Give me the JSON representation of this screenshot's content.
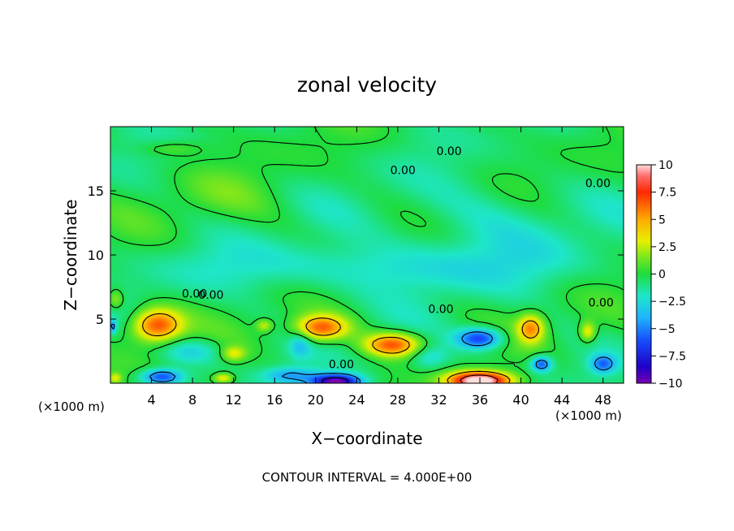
{
  "chart_data": {
    "type": "heatmap",
    "title": "zonal velocity",
    "xlabel": "X−coordinate",
    "ylabel": "Z−coordinate",
    "x_unit_left": "(×1000 m)",
    "x_unit_right": "(×1000 m)",
    "footer": "CONTOUR INTERVAL = 4.000E+00",
    "xlim": [
      0,
      50
    ],
    "ylim": [
      0,
      20
    ],
    "x_ticks": [
      {
        "v": 4,
        "label": "4"
      },
      {
        "v": 8,
        "label": "8"
      },
      {
        "v": 12,
        "label": "12"
      },
      {
        "v": 16,
        "label": "16"
      },
      {
        "v": 20,
        "label": "20"
      },
      {
        "v": 24,
        "label": "24"
      },
      {
        "v": 28,
        "label": "28"
      },
      {
        "v": 32,
        "label": "32"
      },
      {
        "v": 36,
        "label": "36"
      },
      {
        "v": 40,
        "label": "40"
      },
      {
        "v": 44,
        "label": "44"
      },
      {
        "v": 48,
        "label": "48"
      }
    ],
    "y_ticks": [
      {
        "v": 5,
        "label": "5"
      },
      {
        "v": 10,
        "label": "10"
      },
      {
        "v": 15,
        "label": "15"
      }
    ],
    "colorbar": {
      "min": -10,
      "max": 10,
      "ticks": [
        {
          "v": 10,
          "label": "10"
        },
        {
          "v": 7.5,
          "label": "7.5"
        },
        {
          "v": 5,
          "label": "5"
        },
        {
          "v": 2.5,
          "label": "2.5"
        },
        {
          "v": 0,
          "label": "0"
        },
        {
          "v": -2.5,
          "label": "−2.5"
        },
        {
          "v": -5,
          "label": "−5"
        },
        {
          "v": -7.5,
          "label": "−7.5"
        },
        {
          "v": -10,
          "label": "−10"
        }
      ],
      "stops": [
        {
          "v": -10,
          "color": "#7a00b4"
        },
        {
          "v": -8.5,
          "color": "#1e00c8"
        },
        {
          "v": -6,
          "color": "#1650ff"
        },
        {
          "v": -4,
          "color": "#1eb4ff"
        },
        {
          "v": -2,
          "color": "#1ee6c8"
        },
        {
          "v": 0,
          "color": "#1edc3c"
        },
        {
          "v": 1.5,
          "color": "#78e61e"
        },
        {
          "v": 3,
          "color": "#e6f000"
        },
        {
          "v": 5,
          "color": "#ffaa00"
        },
        {
          "v": 7.5,
          "color": "#ff2800"
        },
        {
          "v": 9,
          "color": "#ff6e6e"
        },
        {
          "v": 10,
          "color": "#ffdcdc"
        }
      ]
    },
    "contour_labels": [
      {
        "x": 33,
        "y": 18.1,
        "label": "0.00"
      },
      {
        "x": 28.5,
        "y": 16.6,
        "label": "0.00"
      },
      {
        "x": 47.5,
        "y": 15.6,
        "label": "0.00"
      },
      {
        "x": 8.2,
        "y": 7.0,
        "label": "0.00"
      },
      {
        "x": 9.8,
        "y": 6.9,
        "label": "0.00"
      },
      {
        "x": 32.2,
        "y": 5.8,
        "label": "0.00"
      },
      {
        "x": 47.8,
        "y": 6.3,
        "label": "0.00"
      },
      {
        "x": 22.5,
        "y": 1.5,
        "label": "0.00"
      }
    ],
    "features": [
      {
        "x": 4.5,
        "y": 4.5,
        "sx": 2.4,
        "sy": 1.3,
        "amp": 7.5
      },
      {
        "x": 20.5,
        "y": 4.3,
        "sx": 2.6,
        "sy": 1.0,
        "amp": 7.0
      },
      {
        "x": 27.5,
        "y": 3.0,
        "sx": 2.8,
        "sy": 0.9,
        "amp": 6.8
      },
      {
        "x": 41,
        "y": 4.3,
        "sx": 1.3,
        "sy": 1.1,
        "amp": 5.5
      },
      {
        "x": 36,
        "y": 0.2,
        "sx": 3.0,
        "sy": 0.7,
        "amp": 12
      },
      {
        "x": 22,
        "y": 0.1,
        "sx": 2.4,
        "sy": 0.6,
        "amp": -10
      },
      {
        "x": 5,
        "y": 0.5,
        "sx": 2.0,
        "sy": 0.6,
        "amp": -6
      },
      {
        "x": 36,
        "y": 3.5,
        "sx": 2.2,
        "sy": 0.8,
        "amp": -6.5
      },
      {
        "x": 42,
        "y": 1.5,
        "sx": 1.0,
        "sy": 0.6,
        "amp": -5.5
      },
      {
        "x": 48,
        "y": 1.5,
        "sx": 1.2,
        "sy": 0.7,
        "amp": -4.5
      },
      {
        "x": 17.5,
        "y": 0.6,
        "sx": 2.5,
        "sy": 0.6,
        "amp": -3.5
      },
      {
        "x": 12,
        "y": 2.3,
        "sx": 1.2,
        "sy": 0.6,
        "amp": 3.2
      },
      {
        "x": 15,
        "y": 4.5,
        "sx": 0.8,
        "sy": 0.5,
        "amp": 3.0
      },
      {
        "x": 11,
        "y": 0.4,
        "sx": 1.0,
        "sy": 0.4,
        "amp": 4.0
      },
      {
        "x": 0.5,
        "y": 0.4,
        "sx": 0.6,
        "sy": 0.4,
        "amp": 3.0
      },
      {
        "x": 46.5,
        "y": 4.0,
        "sx": 0.8,
        "sy": 0.8,
        "amp": 4.0
      },
      {
        "x": 0.5,
        "y": 6.5,
        "sx": 0.8,
        "sy": 0.8,
        "amp": 3.0
      },
      {
        "x": 8,
        "y": 2.5,
        "sx": 3.0,
        "sy": 1.0,
        "amp": -2.5
      },
      {
        "x": 31,
        "y": 2.0,
        "sx": 2.0,
        "sy": 1.0,
        "amp": -2.5
      },
      {
        "x": 0.2,
        "y": 4.4,
        "sx": 0.4,
        "sy": 0.5,
        "amp": -4.0
      },
      {
        "x": 18.5,
        "y": 3.0,
        "sx": 1.0,
        "sy": 1.0,
        "amp": -2.5
      },
      {
        "x": 25,
        "y": 9.0,
        "sx": 18,
        "sy": 2.0,
        "amp": -2.0
      },
      {
        "x": 37,
        "y": 12.5,
        "sx": 10,
        "sy": 3.5,
        "amp": -1.3
      },
      {
        "x": 11,
        "y": 14.5,
        "sx": 6,
        "sy": 2.0,
        "amp": 0.8
      },
      {
        "x": 6,
        "y": 18.3,
        "sx": 3.0,
        "sy": 0.6,
        "amp": 1.5
      }
    ]
  }
}
